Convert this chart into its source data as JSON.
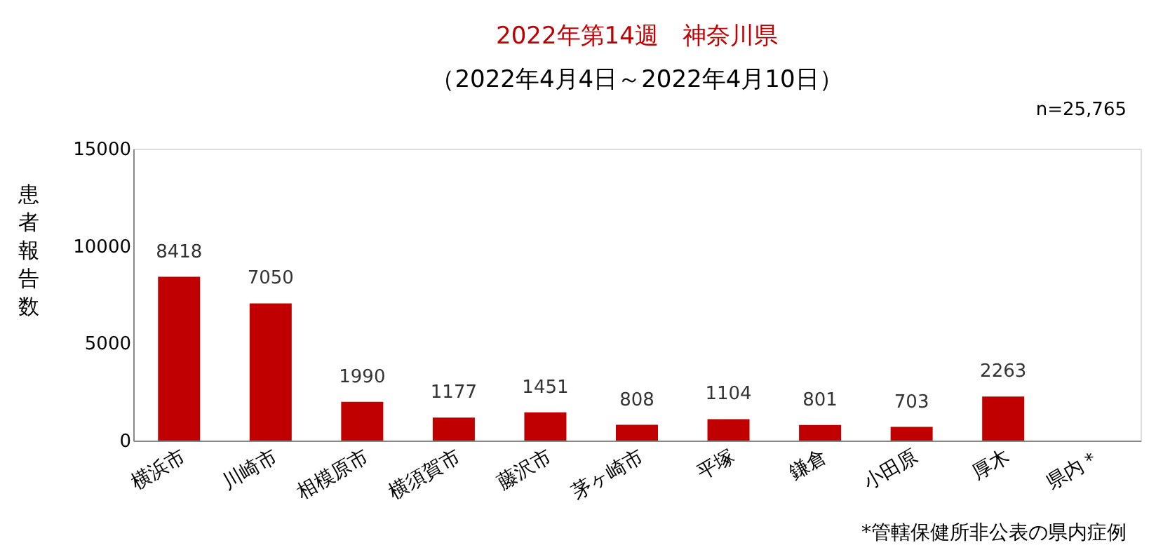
{
  "chart_data": {
    "type": "bar",
    "title": "2022年第14週　神奈川県",
    "subtitle": "（2022年4月4日～2022年4月10日）",
    "ylabel": "患者報告数",
    "categories": [
      "横浜市",
      "川崎市",
      "相模原市",
      "横須賀市",
      "藤沢市",
      "茅ヶ崎市",
      "平塚",
      "鎌倉",
      "小田原",
      "厚木",
      "県内＊"
    ],
    "values": [
      8418,
      7050,
      1990,
      1177,
      1451,
      808,
      1104,
      801,
      703,
      2263,
      null
    ],
    "color": "#c00000",
    "ylim": [
      0,
      15000
    ],
    "yticks": [
      0,
      5000,
      10000,
      15000
    ],
    "grid": false,
    "data_labels": true,
    "annotations": [
      "n=25,765",
      "*管轄保健所非公表の県内症例"
    ]
  }
}
